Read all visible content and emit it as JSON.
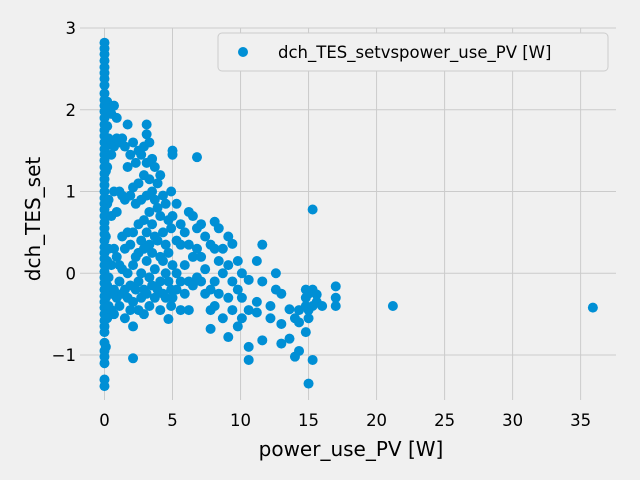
{
  "chart_data": {
    "type": "scatter",
    "xlabel": "power_use_PV [W]",
    "ylabel": "dch_TES_set",
    "xlim": [
      -1.8,
      37.6
    ],
    "ylim": [
      -1.55,
      3.0
    ],
    "xticks": [
      0,
      5,
      10,
      15,
      20,
      25,
      30,
      35
    ],
    "yticks": [
      -1,
      0,
      1,
      2,
      3
    ],
    "grid": true,
    "legend_position": "top-right",
    "series": [
      {
        "name": "dch_TES_setvspower_use_PV [W]",
        "color": "#008fd5",
        "points": [
          [
            0.0,
            2.82
          ],
          [
            0.0,
            2.75
          ],
          [
            0.0,
            2.68
          ],
          [
            0.0,
            2.6
          ],
          [
            0.0,
            2.52
          ],
          [
            0.0,
            2.45
          ],
          [
            0.0,
            2.38
          ],
          [
            0.0,
            2.3
          ],
          [
            0.0,
            2.2
          ],
          [
            0.0,
            2.12
          ],
          [
            0.0,
            2.05
          ],
          [
            0.0,
            1.98
          ],
          [
            0.0,
            1.9
          ],
          [
            0.0,
            1.82
          ],
          [
            0.0,
            1.75
          ],
          [
            0.0,
            1.68
          ],
          [
            0.0,
            1.6
          ],
          [
            0.0,
            1.52
          ],
          [
            0.0,
            1.45
          ],
          [
            0.0,
            1.38
          ],
          [
            0.0,
            1.3
          ],
          [
            0.0,
            1.22
          ],
          [
            0.0,
            1.15
          ],
          [
            0.0,
            1.08
          ],
          [
            0.0,
            1.0
          ],
          [
            0.0,
            0.92
          ],
          [
            0.0,
            0.85
          ],
          [
            0.0,
            0.78
          ],
          [
            0.0,
            0.7
          ],
          [
            0.0,
            0.62
          ],
          [
            0.0,
            0.55
          ],
          [
            0.0,
            0.48
          ],
          [
            0.0,
            0.4
          ],
          [
            0.0,
            0.32
          ],
          [
            0.0,
            0.25
          ],
          [
            0.0,
            0.18
          ],
          [
            0.0,
            0.1
          ],
          [
            0.0,
            0.02
          ],
          [
            0.0,
            -0.05
          ],
          [
            0.0,
            -0.12
          ],
          [
            0.0,
            -0.2
          ],
          [
            0.0,
            -0.28
          ],
          [
            0.0,
            -0.35
          ],
          [
            0.0,
            -0.42
          ],
          [
            0.0,
            -0.5
          ],
          [
            0.0,
            -0.58
          ],
          [
            0.0,
            -0.65
          ],
          [
            0.0,
            -0.72
          ],
          [
            0.0,
            -0.85
          ],
          [
            0.0,
            -0.95
          ],
          [
            0.0,
            -1.02
          ],
          [
            0.0,
            -1.1
          ],
          [
            0.0,
            -1.3
          ],
          [
            0.0,
            -1.38
          ],
          [
            0.1,
            2.0
          ],
          [
            0.1,
            1.55
          ],
          [
            0.1,
            1.25
          ],
          [
            0.1,
            0.45
          ],
          [
            0.1,
            -0.3
          ],
          [
            0.1,
            -0.9
          ],
          [
            0.2,
            2.1
          ],
          [
            0.2,
            1.8
          ],
          [
            0.2,
            1.3
          ],
          [
            0.2,
            0.85
          ],
          [
            0.2,
            0.15
          ],
          [
            0.2,
            -0.15
          ],
          [
            0.2,
            -0.55
          ],
          [
            0.3,
            1.65
          ],
          [
            0.3,
            0.9
          ],
          [
            0.3,
            0.3
          ],
          [
            0.3,
            -0.05
          ],
          [
            0.3,
            -0.4
          ],
          [
            0.5,
            1.95
          ],
          [
            0.5,
            1.6
          ],
          [
            0.5,
            1.45
          ],
          [
            0.5,
            0.7
          ],
          [
            0.5,
            0.1
          ],
          [
            0.5,
            -0.25
          ],
          [
            0.5,
            -0.45
          ],
          [
            0.7,
            2.05
          ],
          [
            0.7,
            1.55
          ],
          [
            0.7,
            1.0
          ],
          [
            0.7,
            0.3
          ],
          [
            0.7,
            -0.2
          ],
          [
            0.7,
            -0.5
          ],
          [
            0.9,
            1.9
          ],
          [
            0.9,
            1.65
          ],
          [
            0.9,
            0.75
          ],
          [
            0.9,
            0.2
          ],
          [
            0.9,
            -0.3
          ],
          [
            1.1,
            1.6
          ],
          [
            1.1,
            1.0
          ],
          [
            1.1,
            0.1
          ],
          [
            1.1,
            -0.1
          ],
          [
            1.1,
            -0.4
          ],
          [
            1.3,
            1.65
          ],
          [
            1.3,
            0.95
          ],
          [
            1.3,
            0.45
          ],
          [
            1.3,
            0.05
          ],
          [
            1.3,
            -0.25
          ],
          [
            1.5,
            1.55
          ],
          [
            1.5,
            0.9
          ],
          [
            1.5,
            0.3
          ],
          [
            1.5,
            -0.2
          ],
          [
            1.5,
            -0.55
          ],
          [
            1.7,
            1.82
          ],
          [
            1.7,
            1.3
          ],
          [
            1.7,
            0.5
          ],
          [
            1.7,
            0.0
          ],
          [
            1.7,
            -0.3
          ],
          [
            1.9,
            1.45
          ],
          [
            1.9,
            0.95
          ],
          [
            1.9,
            0.35
          ],
          [
            1.9,
            -0.15
          ],
          [
            1.9,
            -0.45
          ],
          [
            2.1,
            1.6
          ],
          [
            2.1,
            1.05
          ],
          [
            2.1,
            0.5
          ],
          [
            2.1,
            0.1
          ],
          [
            2.1,
            -0.35
          ],
          [
            2.1,
            -1.04
          ],
          [
            2.1,
            -0.65
          ],
          [
            2.3,
            1.35
          ],
          [
            2.3,
            0.85
          ],
          [
            2.3,
            0.2
          ],
          [
            2.3,
            -0.2
          ],
          [
            2.5,
            1.5
          ],
          [
            2.5,
            1.1
          ],
          [
            2.5,
            0.6
          ],
          [
            2.5,
            0.25
          ],
          [
            2.5,
            -0.1
          ],
          [
            2.5,
            -0.45
          ],
          [
            2.7,
            1.45
          ],
          [
            2.7,
            0.9
          ],
          [
            2.7,
            0.4
          ],
          [
            2.7,
            0.0
          ],
          [
            2.7,
            -0.3
          ],
          [
            2.9,
            1.55
          ],
          [
            2.9,
            1.2
          ],
          [
            2.9,
            0.65
          ],
          [
            2.9,
            0.3
          ],
          [
            2.9,
            -0.2
          ],
          [
            2.9,
            -0.5
          ],
          [
            3.1,
            1.82
          ],
          [
            3.1,
            1.7
          ],
          [
            3.1,
            1.35
          ],
          [
            3.1,
            0.95
          ],
          [
            3.1,
            0.5
          ],
          [
            3.1,
            0.15
          ],
          [
            3.1,
            -0.25
          ],
          [
            3.3,
            1.6
          ],
          [
            3.3,
            1.15
          ],
          [
            3.3,
            0.75
          ],
          [
            3.3,
            0.35
          ],
          [
            3.3,
            -0.05
          ],
          [
            3.3,
            -0.4
          ],
          [
            3.5,
            1.4
          ],
          [
            3.5,
            1.0
          ],
          [
            3.5,
            0.6
          ],
          [
            3.5,
            0.25
          ],
          [
            3.5,
            -0.15
          ],
          [
            3.7,
            1.3
          ],
          [
            3.7,
            0.9
          ],
          [
            3.7,
            0.45
          ],
          [
            3.7,
            0.05
          ],
          [
            3.7,
            -0.3
          ],
          [
            3.9,
            1.1
          ],
          [
            3.9,
            0.8
          ],
          [
            3.9,
            0.4
          ],
          [
            3.9,
            -0.2
          ],
          [
            4.1,
            1.2
          ],
          [
            4.1,
            0.7
          ],
          [
            4.1,
            0.2
          ],
          [
            4.1,
            -0.1
          ],
          [
            4.1,
            -0.45
          ],
          [
            4.3,
            0.95
          ],
          [
            4.3,
            0.5
          ],
          [
            4.3,
            0.15
          ],
          [
            4.3,
            -0.25
          ],
          [
            4.5,
            0.85
          ],
          [
            4.5,
            0.35
          ],
          [
            4.5,
            0.0
          ],
          [
            4.5,
            -0.3
          ],
          [
            4.7,
            0.65
          ],
          [
            4.7,
            0.25
          ],
          [
            4.7,
            -0.1
          ],
          [
            4.7,
            -0.56
          ],
          [
            4.9,
            1.0
          ],
          [
            4.9,
            0.55
          ],
          [
            4.9,
            -0.2
          ],
          [
            4.9,
            -0.4
          ],
          [
            5.0,
            1.5
          ],
          [
            5.0,
            1.45
          ],
          [
            5.0,
            0.7
          ],
          [
            5.0,
            0.1
          ],
          [
            5.0,
            -0.3
          ],
          [
            5.3,
            0.85
          ],
          [
            5.3,
            0.4
          ],
          [
            5.3,
            0.0
          ],
          [
            5.3,
            -0.2
          ],
          [
            5.6,
            0.6
          ],
          [
            5.6,
            0.35
          ],
          [
            5.6,
            -0.1
          ],
          [
            5.6,
            -0.45
          ],
          [
            5.9,
            0.5
          ],
          [
            5.9,
            0.1
          ],
          [
            5.9,
            -0.25
          ],
          [
            6.2,
            0.75
          ],
          [
            6.2,
            0.35
          ],
          [
            6.2,
            -0.1
          ],
          [
            6.2,
            -0.45
          ],
          [
            6.5,
            0.7
          ],
          [
            6.5,
            0.2
          ],
          [
            6.5,
            -0.15
          ],
          [
            6.8,
            1.42
          ],
          [
            6.8,
            0.55
          ],
          [
            6.8,
            0.3
          ],
          [
            6.8,
            -0.05
          ],
          [
            7.1,
            0.6
          ],
          [
            7.1,
            0.2
          ],
          [
            7.1,
            -0.1
          ],
          [
            7.4,
            0.45
          ],
          [
            7.4,
            0.05
          ],
          [
            7.4,
            -0.25
          ],
          [
            7.8,
            0.35
          ],
          [
            7.8,
            -0.2
          ],
          [
            7.8,
            -0.45
          ],
          [
            7.8,
            -0.68
          ],
          [
            8.1,
            0.63
          ],
          [
            8.1,
            0.3
          ],
          [
            8.1,
            -0.1
          ],
          [
            8.1,
            -0.4
          ],
          [
            8.4,
            0.55
          ],
          [
            8.4,
            0.15
          ],
          [
            8.4,
            -0.25
          ],
          [
            8.7,
            0.3
          ],
          [
            8.7,
            0.0
          ],
          [
            8.7,
            -0.55
          ],
          [
            9.1,
            0.45
          ],
          [
            9.1,
            0.1
          ],
          [
            9.1,
            -0.3
          ],
          [
            9.1,
            -0.78
          ],
          [
            9.4,
            0.36
          ],
          [
            9.4,
            -0.1
          ],
          [
            9.4,
            -0.45
          ],
          [
            9.8,
            0.15
          ],
          [
            9.8,
            -0.2
          ],
          [
            9.8,
            -0.65
          ],
          [
            10.1,
            0.0
          ],
          [
            10.1,
            -0.3
          ],
          [
            10.1,
            -0.55
          ],
          [
            10.6,
            -0.08
          ],
          [
            10.6,
            -0.45
          ],
          [
            10.6,
            -1.06
          ],
          [
            10.6,
            -0.9
          ],
          [
            11.2,
            0.15
          ],
          [
            11.2,
            -0.35
          ],
          [
            11.2,
            -0.48
          ],
          [
            11.6,
            0.35
          ],
          [
            11.6,
            -0.1
          ],
          [
            11.6,
            -0.82
          ],
          [
            12.2,
            -0.4
          ],
          [
            12.2,
            -0.55
          ],
          [
            12.6,
            0.0
          ],
          [
            12.6,
            -0.2
          ],
          [
            13.0,
            -0.25
          ],
          [
            13.0,
            -0.62
          ],
          [
            13.0,
            -0.86
          ],
          [
            13.6,
            -0.44
          ],
          [
            13.6,
            -0.8
          ],
          [
            14.0,
            -1.02
          ],
          [
            14.0,
            -0.55
          ],
          [
            14.3,
            -0.45
          ],
          [
            14.3,
            -0.6
          ],
          [
            14.3,
            -0.95
          ],
          [
            14.8,
            -0.72
          ],
          [
            14.8,
            -0.2
          ],
          [
            14.8,
            -0.3
          ],
          [
            14.8,
            -0.4
          ],
          [
            15.0,
            -1.35
          ],
          [
            15.0,
            -0.55
          ],
          [
            15.0,
            -0.25
          ],
          [
            15.0,
            -0.45
          ],
          [
            15.3,
            0.78
          ],
          [
            15.3,
            -1.06
          ],
          [
            15.3,
            -0.4
          ],
          [
            15.3,
            -0.2
          ],
          [
            15.6,
            -0.26
          ],
          [
            15.6,
            -0.35
          ],
          [
            16.0,
            -0.4
          ],
          [
            17.0,
            -0.16
          ],
          [
            17.0,
            -0.3
          ],
          [
            17.0,
            -0.4
          ],
          [
            21.2,
            -0.4
          ],
          [
            35.9,
            -0.42
          ]
        ]
      }
    ]
  }
}
